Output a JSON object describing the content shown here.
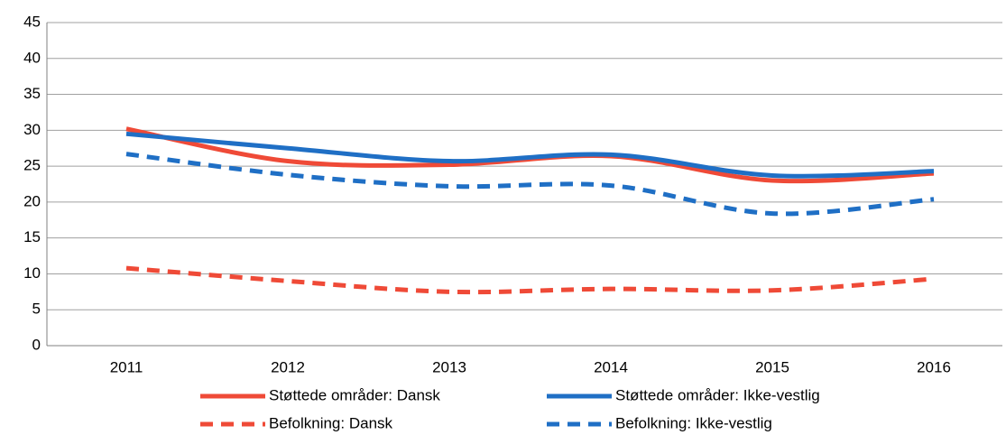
{
  "chart_data": {
    "type": "line",
    "categories": [
      "2011",
      "2012",
      "2013",
      "2014",
      "2015",
      "2016"
    ],
    "series": [
      {
        "name": "Støttede områder: Dansk",
        "color": "#ef4a37",
        "style": "solid",
        "values": [
          30.2,
          25.7,
          25.2,
          26.4,
          23.0,
          24.0
        ]
      },
      {
        "name": "Støttede områder: Ikke-vestlig",
        "color": "#1f6fc5",
        "style": "solid",
        "values": [
          29.5,
          27.5,
          25.7,
          26.6,
          23.7,
          24.3
        ]
      },
      {
        "name": "Befolkning: Dansk",
        "color": "#ef4a37",
        "style": "dashed",
        "values": [
          10.8,
          9.0,
          7.5,
          7.9,
          7.7,
          9.3
        ]
      },
      {
        "name": "Befolkning: Ikke-vestlig",
        "color": "#1f6fc5",
        "style": "dashed",
        "values": [
          26.7,
          23.8,
          22.2,
          22.3,
          18.4,
          20.4
        ]
      }
    ],
    "ylim": [
      0,
      45
    ],
    "yticks": [
      0,
      5,
      10,
      15,
      20,
      25,
      30,
      35,
      40,
      45
    ],
    "grid": true,
    "legend": "bottom"
  }
}
